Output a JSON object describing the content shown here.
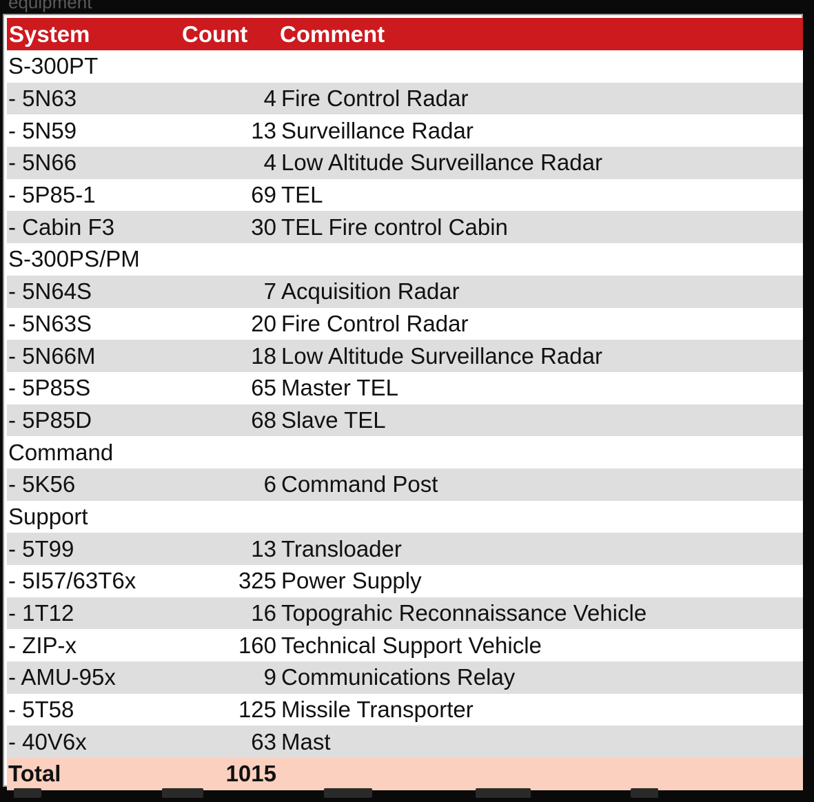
{
  "top_fragment": "equipment",
  "header": {
    "system": "System",
    "count": "Count",
    "comment": "Comment"
  },
  "rows": [
    {
      "system": "S-300PT",
      "count": "",
      "comment": ""
    },
    {
      "system": "- 5N63",
      "count": "4",
      "comment": "Fire Control Radar"
    },
    {
      "system": "- 5N59",
      "count": "13",
      "comment": "Surveillance Radar"
    },
    {
      "system": "- 5N66",
      "count": "4",
      "comment": "Low Altitude Surveillance Radar"
    },
    {
      "system": "- 5P85-1",
      "count": "69",
      "comment": "TEL"
    },
    {
      "system": "- Cabin F3",
      "count": "30",
      "comment": "TEL Fire control Cabin"
    },
    {
      "system": "S-300PS/PM",
      "count": "",
      "comment": ""
    },
    {
      "system": "- 5N64S",
      "count": "7",
      "comment": "Acquisition Radar"
    },
    {
      "system": "- 5N63S",
      "count": "20",
      "comment": "Fire Control Radar"
    },
    {
      "system": "- 5N66M",
      "count": "18",
      "comment": "Low Altitude Surveillance Radar"
    },
    {
      "system": "- 5P85S",
      "count": "65",
      "comment": "Master TEL"
    },
    {
      "system": "- 5P85D",
      "count": "68",
      "comment": "Slave TEL"
    },
    {
      "system": "Command",
      "count": "",
      "comment": ""
    },
    {
      "system": "- 5K56",
      "count": "6",
      "comment": "Command Post"
    },
    {
      "system": "Support",
      "count": "",
      "comment": ""
    },
    {
      "system": "- 5T99",
      "count": "13",
      "comment": "Transloader"
    },
    {
      "system": "- 5I57/63T6x",
      "count": "325",
      "comment": "Power Supply"
    },
    {
      "system": "- 1T12",
      "count": "16",
      "comment": "Topograhic Reconnaissance Vehicle"
    },
    {
      "system": "- ZIP-x",
      "count": "160",
      "comment": "Technical Support Vehicle"
    },
    {
      "system": "- AMU-95x",
      "count": "9",
      "comment": "Communications Relay"
    },
    {
      "system": "- 5T58",
      "count": "125",
      "comment": "Missile Transporter"
    },
    {
      "system": "- 40V6x",
      "count": "63",
      "comment": "Mast"
    }
  ],
  "total": {
    "label": "Total",
    "count": "1015",
    "comment": ""
  },
  "colors": {
    "header_bg": "#cc1a1f",
    "header_text": "#ffffff",
    "stripe": "#dedede",
    "total_bg": "#fbd0bf",
    "page_bg": "#0a0a0a"
  }
}
